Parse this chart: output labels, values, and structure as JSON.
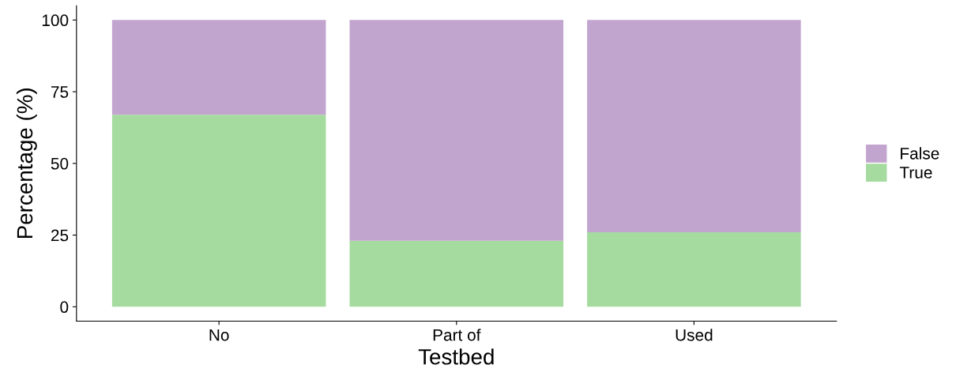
{
  "chart_data": {
    "type": "bar",
    "stacked": true,
    "xlabel": "Testbed",
    "ylabel": "Percentage (%)",
    "categories": [
      "No",
      "Part of",
      "Used"
    ],
    "series": [
      {
        "name": "True",
        "color": "#a6dba0",
        "values": [
          67,
          23,
          26
        ]
      },
      {
        "name": "False",
        "color": "#c2a5cf",
        "values": [
          33,
          77,
          74
        ]
      }
    ],
    "ylim": [
      -5,
      105
    ],
    "yticks": [
      0,
      25,
      50,
      75,
      100
    ],
    "grid": false,
    "legend": "right"
  }
}
